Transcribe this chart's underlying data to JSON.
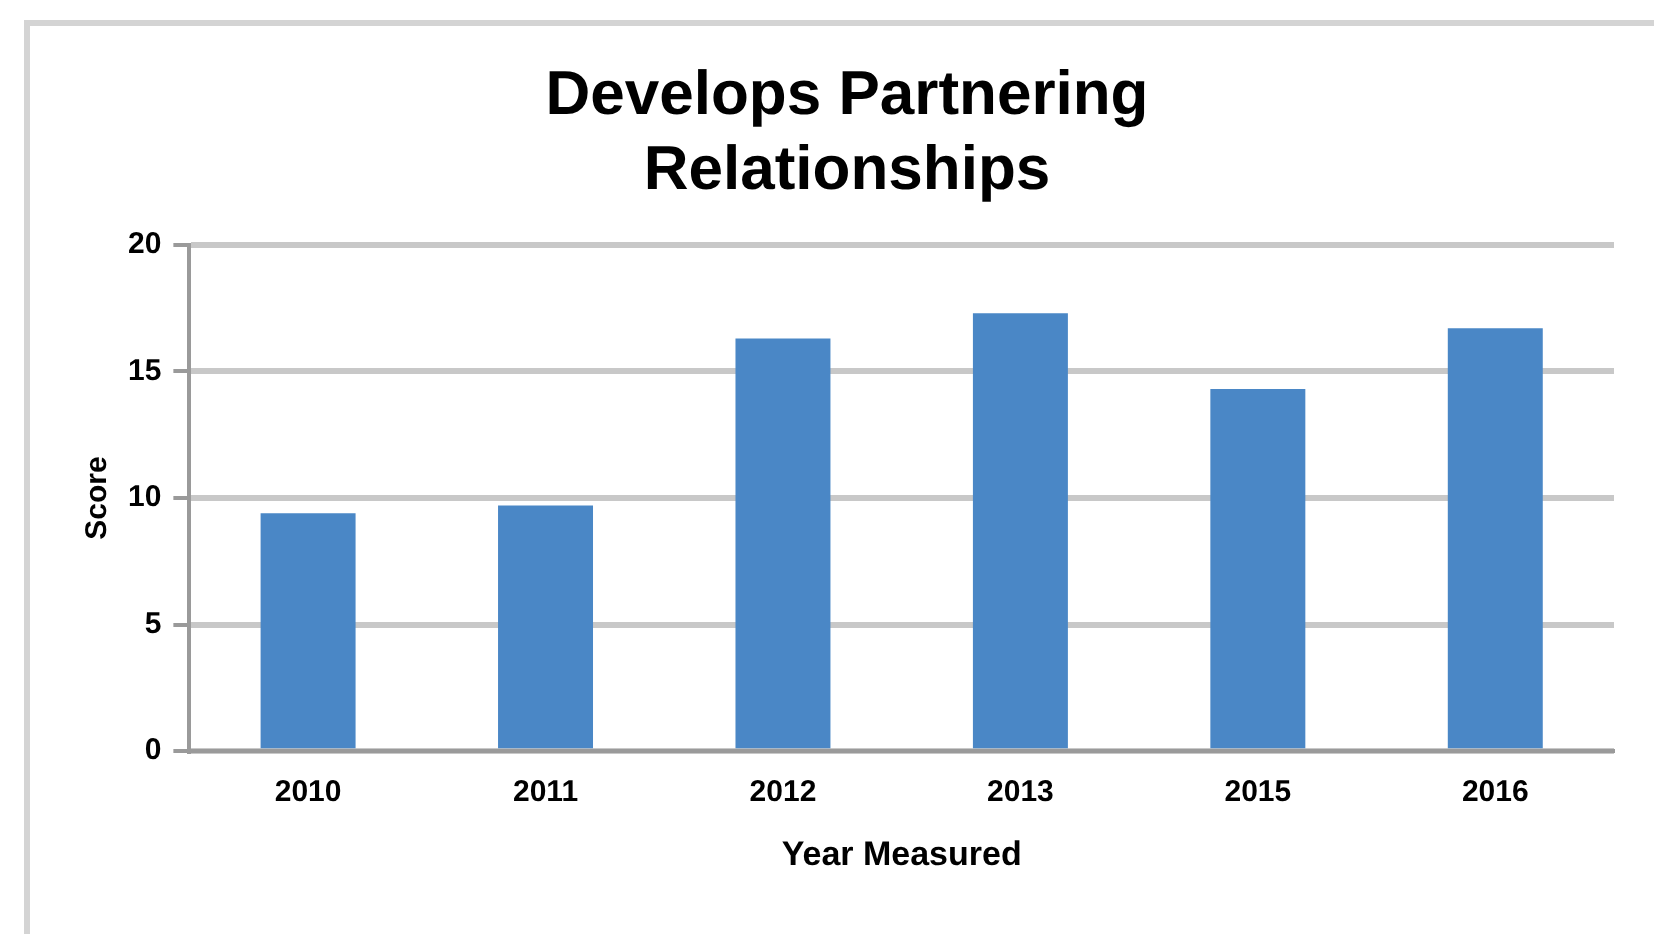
{
  "chart_data": {
    "type": "bar",
    "title": "Develops Partnering Relationships",
    "xlabel": "Year Measured",
    "ylabel": "Score",
    "categories": [
      "2010",
      "2011",
      "2012",
      "2013",
      "2015",
      "2016"
    ],
    "values": [
      9.4,
      9.7,
      16.3,
      17.3,
      14.3,
      16.7
    ],
    "color": "#4a87c6",
    "ylim": [
      0,
      20
    ],
    "yticks": [
      0,
      5,
      10,
      15,
      20
    ],
    "grid": "y",
    "legend": false
  }
}
